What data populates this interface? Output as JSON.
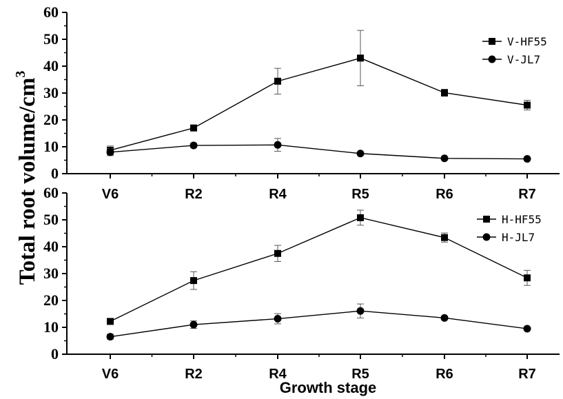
{
  "y_axis_title": {
    "main": "Total root volume/cm",
    "superscript": "3"
  },
  "x_axis_title": "Growth stage",
  "chart_data": [
    {
      "type": "line",
      "categories": [
        "V6",
        "R2",
        "R4",
        "R5",
        "R6",
        "R7"
      ],
      "ylim": [
        0,
        60
      ],
      "yticks": [
        0,
        10,
        20,
        30,
        40,
        50,
        60
      ],
      "legend_position": "top-right",
      "series": [
        {
          "name": "V-HF55",
          "marker": "square",
          "values": [
            8.7,
            17.0,
            34.4,
            43.0,
            30.1,
            25.5
          ],
          "errors": [
            1.6,
            0.6,
            4.8,
            10.3,
            1.3,
            1.8
          ]
        },
        {
          "name": "V-JL7",
          "marker": "circle",
          "values": [
            8.0,
            10.5,
            10.7,
            7.5,
            5.7,
            5.5
          ],
          "errors": [
            1.3,
            0.8,
            2.4,
            0.5,
            0.3,
            0.4
          ]
        }
      ]
    },
    {
      "type": "line",
      "categories": [
        "V6",
        "R2",
        "R4",
        "R5",
        "R6",
        "R7"
      ],
      "ylim": [
        0,
        60
      ],
      "yticks": [
        0,
        10,
        20,
        30,
        40,
        50,
        60
      ],
      "legend_position": "top-right",
      "series": [
        {
          "name": "H-HF55",
          "marker": "square",
          "values": [
            12.2,
            27.4,
            37.5,
            50.8,
            43.4,
            28.4
          ],
          "errors": [
            0.5,
            3.3,
            3.0,
            2.8,
            1.7,
            2.8
          ]
        },
        {
          "name": "H-JL7",
          "marker": "circle",
          "values": [
            6.5,
            11.0,
            13.2,
            16.1,
            13.5,
            9.5
          ],
          "errors": [
            0.9,
            1.4,
            1.9,
            2.6,
            0.6,
            0.3
          ]
        }
      ]
    }
  ]
}
